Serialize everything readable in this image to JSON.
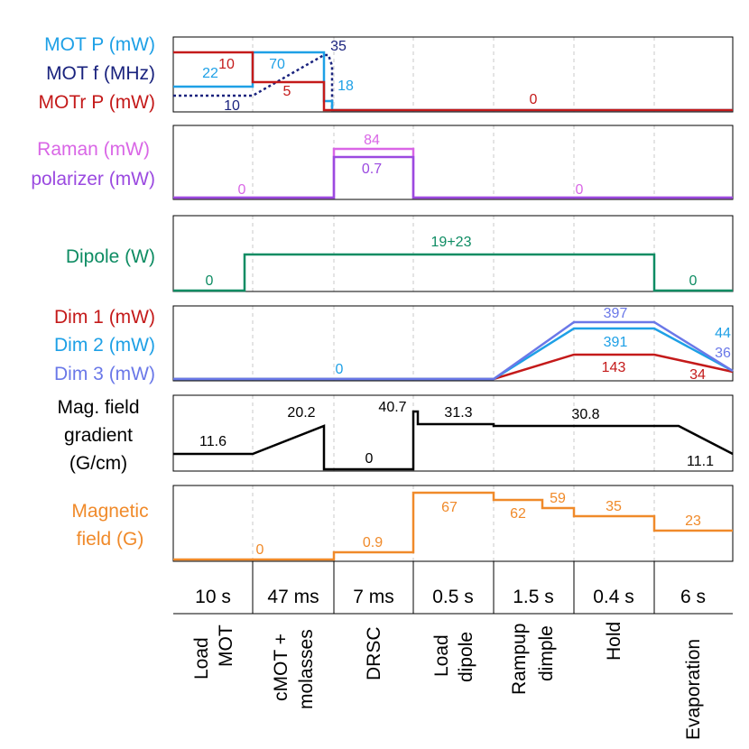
{
  "colors": {
    "mot_p": "#1ea0e6",
    "mot_f": "#1a237e",
    "motr_p": "#c41a1a",
    "raman": "#d966e6",
    "polarizer": "#9b4ae0",
    "dipole": "#0e8c63",
    "dim1": "#c41a1a",
    "dim2": "#1ea0e6",
    "dim3": "#6a78e8",
    "gradient": "#000000",
    "magnetic": "#f08a2a"
  },
  "panels": {
    "mot": {
      "labels": [
        "MOT P (mW)",
        "MOT f (MHz)",
        "MOTr P (mW)"
      ],
      "values": {
        "mot_p_load": "22",
        "motr_p_load": "10",
        "mot_p_cmot": "70",
        "motr_p_cmot": "5",
        "mot_f_load": "10",
        "mot_f_peak": "35",
        "mot_p_drsc": "18",
        "motr_p_rest": "0"
      }
    },
    "raman": {
      "labels": [
        "Raman (mW)",
        "polarizer (mW)"
      ],
      "values": {
        "off_left": "0",
        "raman_on": "84",
        "polarizer_on": "0.7",
        "off_right": "0"
      }
    },
    "dipole": {
      "labels": [
        "Dipole (W)"
      ],
      "values": {
        "off_left": "0",
        "on": "19+23",
        "off_right": "0"
      }
    },
    "dimple": {
      "labels": [
        "Dim 1 (mW)",
        "Dim 2 (mW)",
        "Dim 3 (mW)"
      ],
      "values": {
        "off": "0",
        "dim3_hold": "397",
        "dim2_hold": "391",
        "dim1_hold": "143",
        "dim2_end": "44",
        "dim3_end": "36",
        "dim1_end": "34"
      }
    },
    "gradient": {
      "labels": [
        "Mag. field",
        "gradient",
        "(G/cm)"
      ],
      "values": {
        "load": "11.6",
        "cmot_end": "20.2",
        "drsc": "0",
        "spike": "40.7",
        "load_dipole": "31.3",
        "hold": "30.8",
        "end": "11.1"
      }
    },
    "magnetic": {
      "labels": [
        "Magnetic",
        "field (G)"
      ],
      "values": {
        "start": "0",
        "drsc": "0.9",
        "load_dipole": "67",
        "rampup1": "62",
        "rampup2": "59",
        "hold": "35",
        "evap": "23"
      }
    }
  },
  "stages": [
    {
      "duration": "10 s",
      "name_lines": [
        "Load",
        "MOT"
      ]
    },
    {
      "duration": "47 ms",
      "name_lines": [
        "cMOT +",
        "molasses"
      ]
    },
    {
      "duration": "7 ms",
      "name_lines": [
        "DRSC"
      ]
    },
    {
      "duration": "0.5 s",
      "name_lines": [
        "Load",
        "dipole"
      ]
    },
    {
      "duration": "1.5 s",
      "name_lines": [
        "Rampup",
        "dimple"
      ]
    },
    {
      "duration": "0.4 s",
      "name_lines": [
        "Hold"
      ]
    },
    {
      "duration": "6 s",
      "name_lines": [
        "Evaporation"
      ]
    }
  ]
}
